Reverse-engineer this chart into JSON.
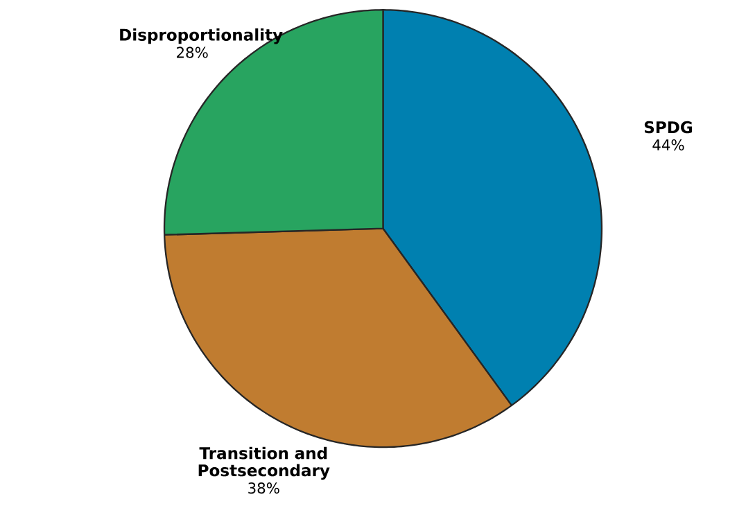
{
  "chart_data": {
    "type": "pie",
    "categories": [
      "SPDG",
      "Transition and Postsecondary",
      "Disproportionality"
    ],
    "values": [
      44,
      38,
      28
    ],
    "value_labels": [
      "44%",
      "38%",
      "28%"
    ],
    "colors": [
      "#0080b0",
      "#c07c30",
      "#28a460"
    ]
  }
}
